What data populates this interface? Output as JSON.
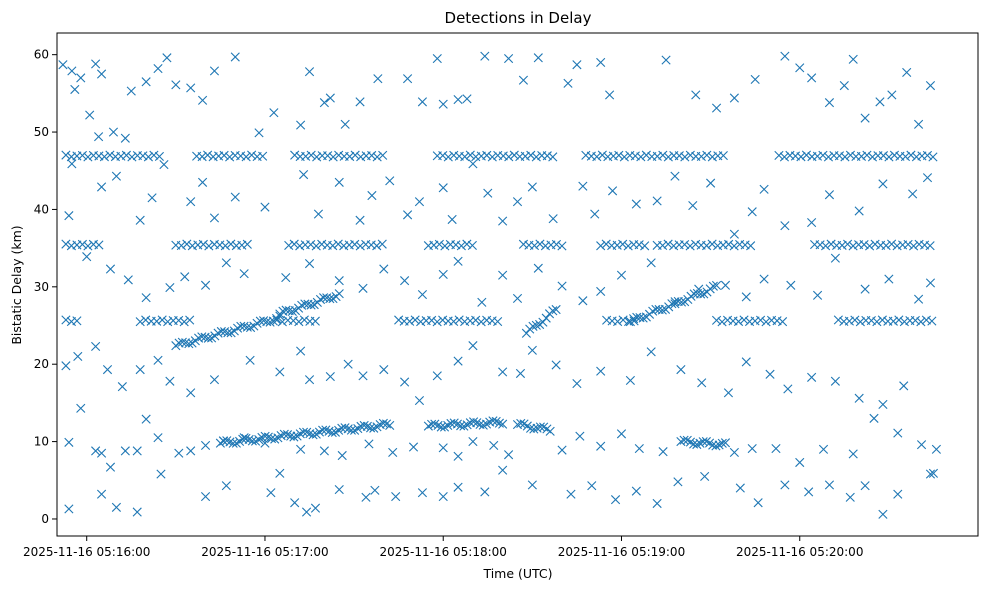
{
  "chart_data": {
    "type": "scatter",
    "title": "Detections in Delay",
    "xlabel": "Time (UTC)",
    "ylabel": "Bistatic Delay (km)",
    "marker": "x",
    "color": "#1f77b4",
    "grid": false,
    "x_ticks": [
      "2025-11-16 05:16:00",
      "2025-11-16 05:17:00",
      "2025-11-16 05:18:00",
      "2025-11-16 05:19:00",
      "2025-11-16 05:20:00"
    ],
    "y_ticks": [
      0,
      10,
      20,
      30,
      40,
      50,
      60
    ],
    "xlim": [
      "2025-11-16 05:15:50",
      "2025-11-16 05:21:00"
    ],
    "ylim": [
      -2.2,
      62.8
    ],
    "bands": [
      {
        "y": 46.9,
        "x_ranges": [
          [
            "05:15:53",
            "05:16:25"
          ],
          [
            "05:16:37",
            "05:17:00"
          ],
          [
            "05:17:10",
            "05:17:40"
          ],
          [
            "05:17:58",
            "05:18:37"
          ],
          [
            "05:18:48",
            "05:19:35"
          ],
          [
            "05:19:53",
            "05:20:45"
          ]
        ]
      },
      {
        "y": 35.4,
        "x_ranges": [
          [
            "05:15:53",
            "05:16:05"
          ],
          [
            "05:16:30",
            "05:16:55"
          ],
          [
            "05:17:08",
            "05:17:40"
          ],
          [
            "05:17:55",
            "05:18:10"
          ],
          [
            "05:18:27",
            "05:18:40"
          ],
          [
            "05:18:53",
            "05:19:08"
          ],
          [
            "05:19:12",
            "05:19:45"
          ],
          [
            "05:20:05",
            "05:20:45"
          ]
        ]
      },
      {
        "y": 25.6,
        "x_ranges": [
          [
            "05:15:53",
            "05:15:58"
          ],
          [
            "05:16:18",
            "05:16:35"
          ],
          [
            "05:17:04",
            "05:17:18"
          ],
          [
            "05:17:45",
            "05:18:20"
          ],
          [
            "05:18:55",
            "05:19:05"
          ],
          [
            "05:19:32",
            "05:19:55"
          ],
          [
            "05:20:13",
            "05:20:45"
          ]
        ]
      }
    ],
    "tracks": [
      {
        "x": [
          "05:16:30",
          "05:17:05"
        ],
        "y": [
          22.4,
          26.0
        ]
      },
      {
        "x": [
          "05:17:05",
          "05:17:25"
        ],
        "y": [
          26.5,
          29.0
        ]
      },
      {
        "x": [
          "05:18:28",
          "05:18:38"
        ],
        "y": [
          24.0,
          27.0
        ]
      },
      {
        "x": [
          "05:19:03",
          "05:19:32"
        ],
        "y": [
          25.5,
          30.0
        ]
      },
      {
        "x": [
          "05:16:45",
          "05:17:42"
        ],
        "y": [
          9.8,
          12.2
        ]
      },
      {
        "x": [
          "05:17:55",
          "05:18:20"
        ],
        "y": [
          12.0,
          12.5
        ]
      },
      {
        "x": [
          "05:18:25",
          "05:18:36"
        ],
        "y": [
          12.2,
          11.5
        ]
      },
      {
        "x": [
          "05:19:20",
          "05:19:35"
        ],
        "y": [
          10.0,
          9.6
        ]
      }
    ],
    "points": [
      [
        "05:15:52",
        58.7
      ],
      [
        "05:15:55",
        57.9
      ],
      [
        "05:15:58",
        57.0
      ],
      [
        "05:16:03",
        58.8
      ],
      [
        "05:16:05",
        57.5
      ],
      [
        "05:15:56",
        55.5
      ],
      [
        "05:16:01",
        52.2
      ],
      [
        "05:16:04",
        49.4
      ],
      [
        "05:16:09",
        50.0
      ],
      [
        "05:16:13",
        49.2
      ],
      [
        "05:16:15",
        55.3
      ],
      [
        "05:16:20",
        56.5
      ],
      [
        "05:16:24",
        58.2
      ],
      [
        "05:16:27",
        59.6
      ],
      [
        "05:16:30",
        56.1
      ],
      [
        "05:16:35",
        55.7
      ],
      [
        "05:16:39",
        54.1
      ],
      [
        "05:16:43",
        57.9
      ],
      [
        "05:16:50",
        59.7
      ],
      [
        "05:16:58",
        49.9
      ],
      [
        "05:17:03",
        52.5
      ],
      [
        "05:17:12",
        50.9
      ],
      [
        "05:17:15",
        57.8
      ],
      [
        "05:17:20",
        53.8
      ],
      [
        "05:17:22",
        54.4
      ],
      [
        "05:17:27",
        51.0
      ],
      [
        "05:17:32",
        53.9
      ],
      [
        "05:17:38",
        56.9
      ],
      [
        "05:17:48",
        56.9
      ],
      [
        "05:17:53",
        53.9
      ],
      [
        "05:17:58",
        59.5
      ],
      [
        "05:18:00",
        53.6
      ],
      [
        "05:18:05",
        54.2
      ],
      [
        "05:18:08",
        54.3
      ],
      [
        "05:18:14",
        59.8
      ],
      [
        "05:18:22",
        59.5
      ],
      [
        "05:18:27",
        56.7
      ],
      [
        "05:18:32",
        59.6
      ],
      [
        "05:18:42",
        56.3
      ],
      [
        "05:18:45",
        58.7
      ],
      [
        "05:18:53",
        59.0
      ],
      [
        "05:18:56",
        54.8
      ],
      [
        "05:19:15",
        59.3
      ],
      [
        "05:19:25",
        54.8
      ],
      [
        "05:19:32",
        53.1
      ],
      [
        "05:19:38",
        54.4
      ],
      [
        "05:19:45",
        56.8
      ],
      [
        "05:19:55",
        59.8
      ],
      [
        "05:20:00",
        58.3
      ],
      [
        "05:20:04",
        57.0
      ],
      [
        "05:20:10",
        53.8
      ],
      [
        "05:20:15",
        56.0
      ],
      [
        "05:20:18",
        59.4
      ],
      [
        "05:20:22",
        51.8
      ],
      [
        "05:20:27",
        53.9
      ],
      [
        "05:20:31",
        54.8
      ],
      [
        "05:20:36",
        57.7
      ],
      [
        "05:20:40",
        51.0
      ],
      [
        "05:20:44",
        56.0
      ],
      [
        "05:15:55",
        45.9
      ],
      [
        "05:16:05",
        42.9
      ],
      [
        "05:16:10",
        44.3
      ],
      [
        "05:16:18",
        38.6
      ],
      [
        "05:16:22",
        41.5
      ],
      [
        "05:16:26",
        45.8
      ],
      [
        "05:16:35",
        41.0
      ],
      [
        "05:16:39",
        43.5
      ],
      [
        "05:16:43",
        38.9
      ],
      [
        "05:16:50",
        41.6
      ],
      [
        "05:17:00",
        40.3
      ],
      [
        "05:17:13",
        44.5
      ],
      [
        "05:17:18",
        39.4
      ],
      [
        "05:17:25",
        43.5
      ],
      [
        "05:17:32",
        38.6
      ],
      [
        "05:17:36",
        41.8
      ],
      [
        "05:17:42",
        43.7
      ],
      [
        "05:17:48",
        39.3
      ],
      [
        "05:17:52",
        41.0
      ],
      [
        "05:18:00",
        42.8
      ],
      [
        "05:18:03",
        38.7
      ],
      [
        "05:18:10",
        45.9
      ],
      [
        "05:18:15",
        42.1
      ],
      [
        "05:18:20",
        38.5
      ],
      [
        "05:18:25",
        41.0
      ],
      [
        "05:18:30",
        42.9
      ],
      [
        "05:18:37",
        38.8
      ],
      [
        "05:18:47",
        43.0
      ],
      [
        "05:18:51",
        39.4
      ],
      [
        "05:18:57",
        42.4
      ],
      [
        "05:19:05",
        40.7
      ],
      [
        "05:19:12",
        41.1
      ],
      [
        "05:19:18",
        44.3
      ],
      [
        "05:19:24",
        40.5
      ],
      [
        "05:19:30",
        43.4
      ],
      [
        "05:19:38",
        36.8
      ],
      [
        "05:19:44",
        39.7
      ],
      [
        "05:19:48",
        42.6
      ],
      [
        "05:19:55",
        37.9
      ],
      [
        "05:20:04",
        38.3
      ],
      [
        "05:20:10",
        41.9
      ],
      [
        "05:20:20",
        39.8
      ],
      [
        "05:20:28",
        43.3
      ],
      [
        "05:20:38",
        42.0
      ],
      [
        "05:20:43",
        44.1
      ],
      [
        "05:15:54",
        39.2
      ],
      [
        "05:16:00",
        33.9
      ],
      [
        "05:16:08",
        32.3
      ],
      [
        "05:16:14",
        30.9
      ],
      [
        "05:16:20",
        28.6
      ],
      [
        "05:16:28",
        29.9
      ],
      [
        "05:16:33",
        31.3
      ],
      [
        "05:16:40",
        30.2
      ],
      [
        "05:16:47",
        33.1
      ],
      [
        "05:16:53",
        31.7
      ],
      [
        "05:17:07",
        31.2
      ],
      [
        "05:17:15",
        33.0
      ],
      [
        "05:17:25",
        30.8
      ],
      [
        "05:17:33",
        29.8
      ],
      [
        "05:17:40",
        32.3
      ],
      [
        "05:17:47",
        30.8
      ],
      [
        "05:17:53",
        29.0
      ],
      [
        "05:18:00",
        31.6
      ],
      [
        "05:18:05",
        33.3
      ],
      [
        "05:18:13",
        28.0
      ],
      [
        "05:18:20",
        31.5
      ],
      [
        "05:18:25",
        28.5
      ],
      [
        "05:18:32",
        32.4
      ],
      [
        "05:18:40",
        30.1
      ],
      [
        "05:18:47",
        28.2
      ],
      [
        "05:18:53",
        29.4
      ],
      [
        "05:19:00",
        31.5
      ],
      [
        "05:19:10",
        33.1
      ],
      [
        "05:19:18",
        27.8
      ],
      [
        "05:19:26",
        29.7
      ],
      [
        "05:19:35",
        30.2
      ],
      [
        "05:19:42",
        28.7
      ],
      [
        "05:19:48",
        31.0
      ],
      [
        "05:19:57",
        30.2
      ],
      [
        "05:20:06",
        28.9
      ],
      [
        "05:20:12",
        33.7
      ],
      [
        "05:20:22",
        29.7
      ],
      [
        "05:20:30",
        31.0
      ],
      [
        "05:20:40",
        28.4
      ],
      [
        "05:20:44",
        30.5
      ],
      [
        "05:15:53",
        19.8
      ],
      [
        "05:15:57",
        21.0
      ],
      [
        "05:16:03",
        22.3
      ],
      [
        "05:16:07",
        19.3
      ],
      [
        "05:16:12",
        17.1
      ],
      [
        "05:16:18",
        19.3
      ],
      [
        "05:16:24",
        20.5
      ],
      [
        "05:16:28",
        17.8
      ],
      [
        "05:16:35",
        16.3
      ],
      [
        "05:16:43",
        18.0
      ],
      [
        "05:16:55",
        20.5
      ],
      [
        "05:17:05",
        19.0
      ],
      [
        "05:17:12",
        21.7
      ],
      [
        "05:17:15",
        18.0
      ],
      [
        "05:17:22",
        18.4
      ],
      [
        "05:17:28",
        20.0
      ],
      [
        "05:17:33",
        18.5
      ],
      [
        "05:17:40",
        19.3
      ],
      [
        "05:17:47",
        17.7
      ],
      [
        "05:17:52",
        15.3
      ],
      [
        "05:17:58",
        18.5
      ],
      [
        "05:18:05",
        20.4
      ],
      [
        "05:18:10",
        22.4
      ],
      [
        "05:18:20",
        19.0
      ],
      [
        "05:18:26",
        18.8
      ],
      [
        "05:18:30",
        21.8
      ],
      [
        "05:18:38",
        19.9
      ],
      [
        "05:18:45",
        17.5
      ],
      [
        "05:18:53",
        19.1
      ],
      [
        "05:19:03",
        17.9
      ],
      [
        "05:19:10",
        21.6
      ],
      [
        "05:19:20",
        19.3
      ],
      [
        "05:19:27",
        17.6
      ],
      [
        "05:19:36",
        16.3
      ],
      [
        "05:19:42",
        20.3
      ],
      [
        "05:19:50",
        18.7
      ],
      [
        "05:19:56",
        16.8
      ],
      [
        "05:20:04",
        18.3
      ],
      [
        "05:20:12",
        17.8
      ],
      [
        "05:20:20",
        15.6
      ],
      [
        "05:20:28",
        14.8
      ],
      [
        "05:20:35",
        17.2
      ],
      [
        "05:15:54",
        9.9
      ],
      [
        "05:15:58",
        14.3
      ],
      [
        "05:16:03",
        8.8
      ],
      [
        "05:16:05",
        8.5
      ],
      [
        "05:16:08",
        6.7
      ],
      [
        "05:16:13",
        8.8
      ],
      [
        "05:16:17",
        8.8
      ],
      [
        "05:16:20",
        12.9
      ],
      [
        "05:16:24",
        10.5
      ],
      [
        "05:16:31",
        8.5
      ],
      [
        "05:16:35",
        8.8
      ],
      [
        "05:16:40",
        9.5
      ],
      [
        "05:16:46",
        10.1
      ],
      [
        "05:16:53",
        10.5
      ],
      [
        "05:17:00",
        9.8
      ],
      [
        "05:17:05",
        5.9
      ],
      [
        "05:17:12",
        9.0
      ],
      [
        "05:17:20",
        8.8
      ],
      [
        "05:17:26",
        8.2
      ],
      [
        "05:17:35",
        9.7
      ],
      [
        "05:17:43",
        8.6
      ],
      [
        "05:17:50",
        9.3
      ],
      [
        "05:18:00",
        9.2
      ],
      [
        "05:18:05",
        8.1
      ],
      [
        "05:18:10",
        10.0
      ],
      [
        "05:18:17",
        9.5
      ],
      [
        "05:18:22",
        8.3
      ],
      [
        "05:18:40",
        8.9
      ],
      [
        "05:18:46",
        10.7
      ],
      [
        "05:18:53",
        9.4
      ],
      [
        "05:19:00",
        11.0
      ],
      [
        "05:19:06",
        9.1
      ],
      [
        "05:19:14",
        8.7
      ],
      [
        "05:19:38",
        8.6
      ],
      [
        "05:19:44",
        9.1
      ],
      [
        "05:19:52",
        9.1
      ],
      [
        "05:20:00",
        7.3
      ],
      [
        "05:20:08",
        9.0
      ],
      [
        "05:20:18",
        8.4
      ],
      [
        "05:20:25",
        13.0
      ],
      [
        "05:20:33",
        11.1
      ],
      [
        "05:20:41",
        9.6
      ],
      [
        "05:15:54",
        1.3
      ],
      [
        "05:16:05",
        3.2
      ],
      [
        "05:16:10",
        1.5
      ],
      [
        "05:16:17",
        0.9
      ],
      [
        "05:16:25",
        5.8
      ],
      [
        "05:16:40",
        2.9
      ],
      [
        "05:16:47",
        4.3
      ],
      [
        "05:17:02",
        3.4
      ],
      [
        "05:17:10",
        2.1
      ],
      [
        "05:17:14",
        0.9
      ],
      [
        "05:17:17",
        1.4
      ],
      [
        "05:17:25",
        3.8
      ],
      [
        "05:17:34",
        2.8
      ],
      [
        "05:17:37",
        3.7
      ],
      [
        "05:17:44",
        2.9
      ],
      [
        "05:17:53",
        3.4
      ],
      [
        "05:18:00",
        2.9
      ],
      [
        "05:18:05",
        4.1
      ],
      [
        "05:18:14",
        3.5
      ],
      [
        "05:18:20",
        6.3
      ],
      [
        "05:18:30",
        4.4
      ],
      [
        "05:18:43",
        3.2
      ],
      [
        "05:18:50",
        4.3
      ],
      [
        "05:18:58",
        2.5
      ],
      [
        "05:19:05",
        3.6
      ],
      [
        "05:19:12",
        2.0
      ],
      [
        "05:19:19",
        4.8
      ],
      [
        "05:19:28",
        5.5
      ],
      [
        "05:19:40",
        4.0
      ],
      [
        "05:19:46",
        2.1
      ],
      [
        "05:19:55",
        4.4
      ],
      [
        "05:20:03",
        3.5
      ],
      [
        "05:20:10",
        4.4
      ],
      [
        "05:20:17",
        2.8
      ],
      [
        "05:20:22",
        4.3
      ],
      [
        "05:20:28",
        0.6
      ],
      [
        "05:20:33",
        3.2
      ],
      [
        "05:20:44",
        5.8
      ],
      [
        "05:20:45",
        5.9
      ],
      [
        "05:20:46",
        9.0
      ]
    ]
  }
}
